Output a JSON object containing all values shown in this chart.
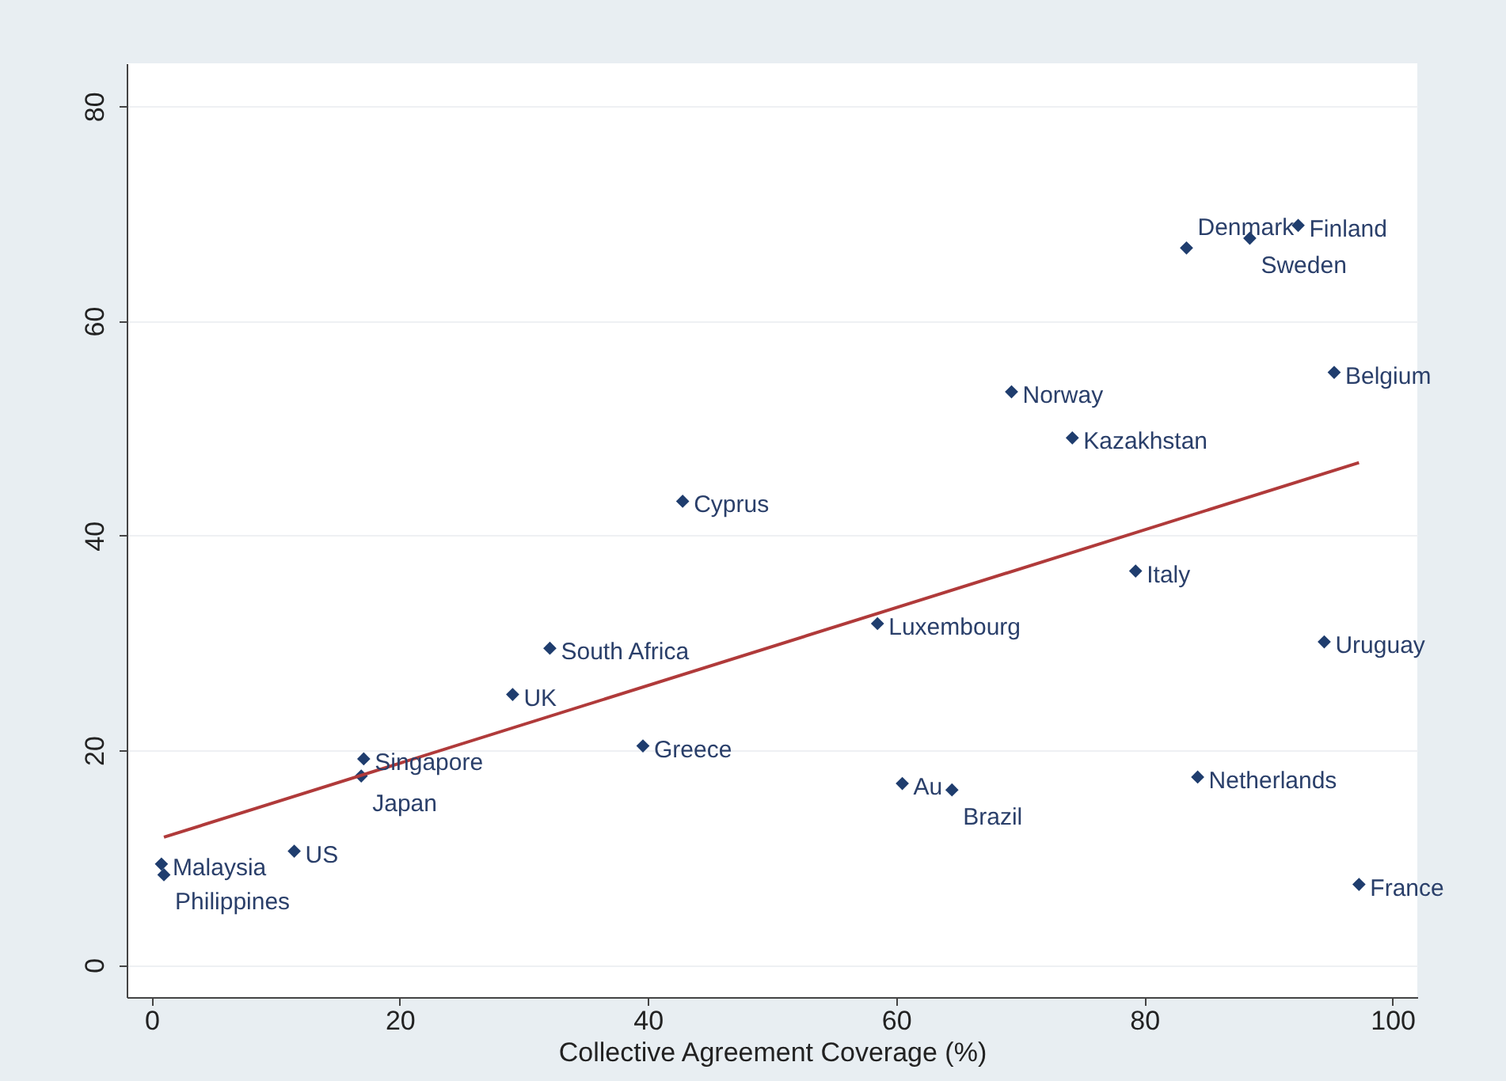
{
  "chart_data": {
    "type": "scatter",
    "xlabel": "Collective Agreement Coverage (%)",
    "xlim": [
      -2,
      102
    ],
    "ylim": [
      -3,
      84
    ],
    "xticks": [
      0,
      20,
      40,
      60,
      80,
      100
    ],
    "yticks": [
      0,
      20,
      40,
      60,
      80
    ],
    "grid": "y",
    "marker": "diamond",
    "series": [
      {
        "type": "scatter",
        "color": "#1f3d6e",
        "x": [
          92.4,
          88.5,
          83.4,
          95.3,
          69.3,
          74.2,
          42.8,
          79.3,
          94.5,
          58.5,
          32.1,
          29.1,
          39.6,
          17.1,
          16.9,
          60.5,
          64.5,
          84.3,
          11.5,
          0.8,
          1.0,
          97.3
        ],
        "values": [
          68.9,
          67.7,
          66.8,
          55.2,
          53.4,
          49.1,
          43.2,
          36.7,
          30.1,
          31.8,
          29.5,
          25.2,
          20.4,
          19.2,
          17.6,
          16.9,
          16.3,
          17.5,
          10.6,
          9.4,
          8.4,
          7.5
        ]
      },
      {
        "type": "line",
        "color": "#b03a3a",
        "marker": "none",
        "x": [
          1.0,
          97.3
        ],
        "values": [
          11.9,
          46.8
        ]
      }
    ],
    "annotations": [
      {
        "text": "Finland",
        "x": 92.4,
        "y": 68.9
      },
      {
        "text": "Sweden",
        "x": 88.5,
        "y": 67.7
      },
      {
        "text": "Denmark",
        "x": 83.4,
        "y": 66.8
      },
      {
        "text": "Belgium",
        "x": 95.3,
        "y": 55.2
      },
      {
        "text": "Norway",
        "x": 69.3,
        "y": 53.4
      },
      {
        "text": "Kazakhstan",
        "x": 74.2,
        "y": 49.1
      },
      {
        "text": "Cyprus",
        "x": 42.8,
        "y": 43.2
      },
      {
        "text": "Italy",
        "x": 79.3,
        "y": 36.7
      },
      {
        "text": "Uruguay",
        "x": 94.5,
        "y": 30.1
      },
      {
        "text": "Luxembourg",
        "x": 58.5,
        "y": 31.8
      },
      {
        "text": "South Africa",
        "x": 32.1,
        "y": 29.5
      },
      {
        "text": "UK",
        "x": 29.1,
        "y": 25.2
      },
      {
        "text": "Greece",
        "x": 39.6,
        "y": 20.4
      },
      {
        "text": "Singapore",
        "x": 17.1,
        "y": 19.2
      },
      {
        "text": "Japan",
        "x": 16.9,
        "y": 17.6
      },
      {
        "text": "Au",
        "x": 60.5,
        "y": 16.9
      },
      {
        "text": "Brazil",
        "x": 64.5,
        "y": 16.3
      },
      {
        "text": "Netherlands",
        "x": 84.3,
        "y": 17.5
      },
      {
        "text": "US",
        "x": 11.5,
        "y": 10.6
      },
      {
        "text": "Malaysia",
        "x": 0.8,
        "y": 9.4
      },
      {
        "text": "Philippines",
        "x": 1.0,
        "y": 8.4
      },
      {
        "text": "France",
        "x": 97.3,
        "y": 7.5
      }
    ]
  }
}
